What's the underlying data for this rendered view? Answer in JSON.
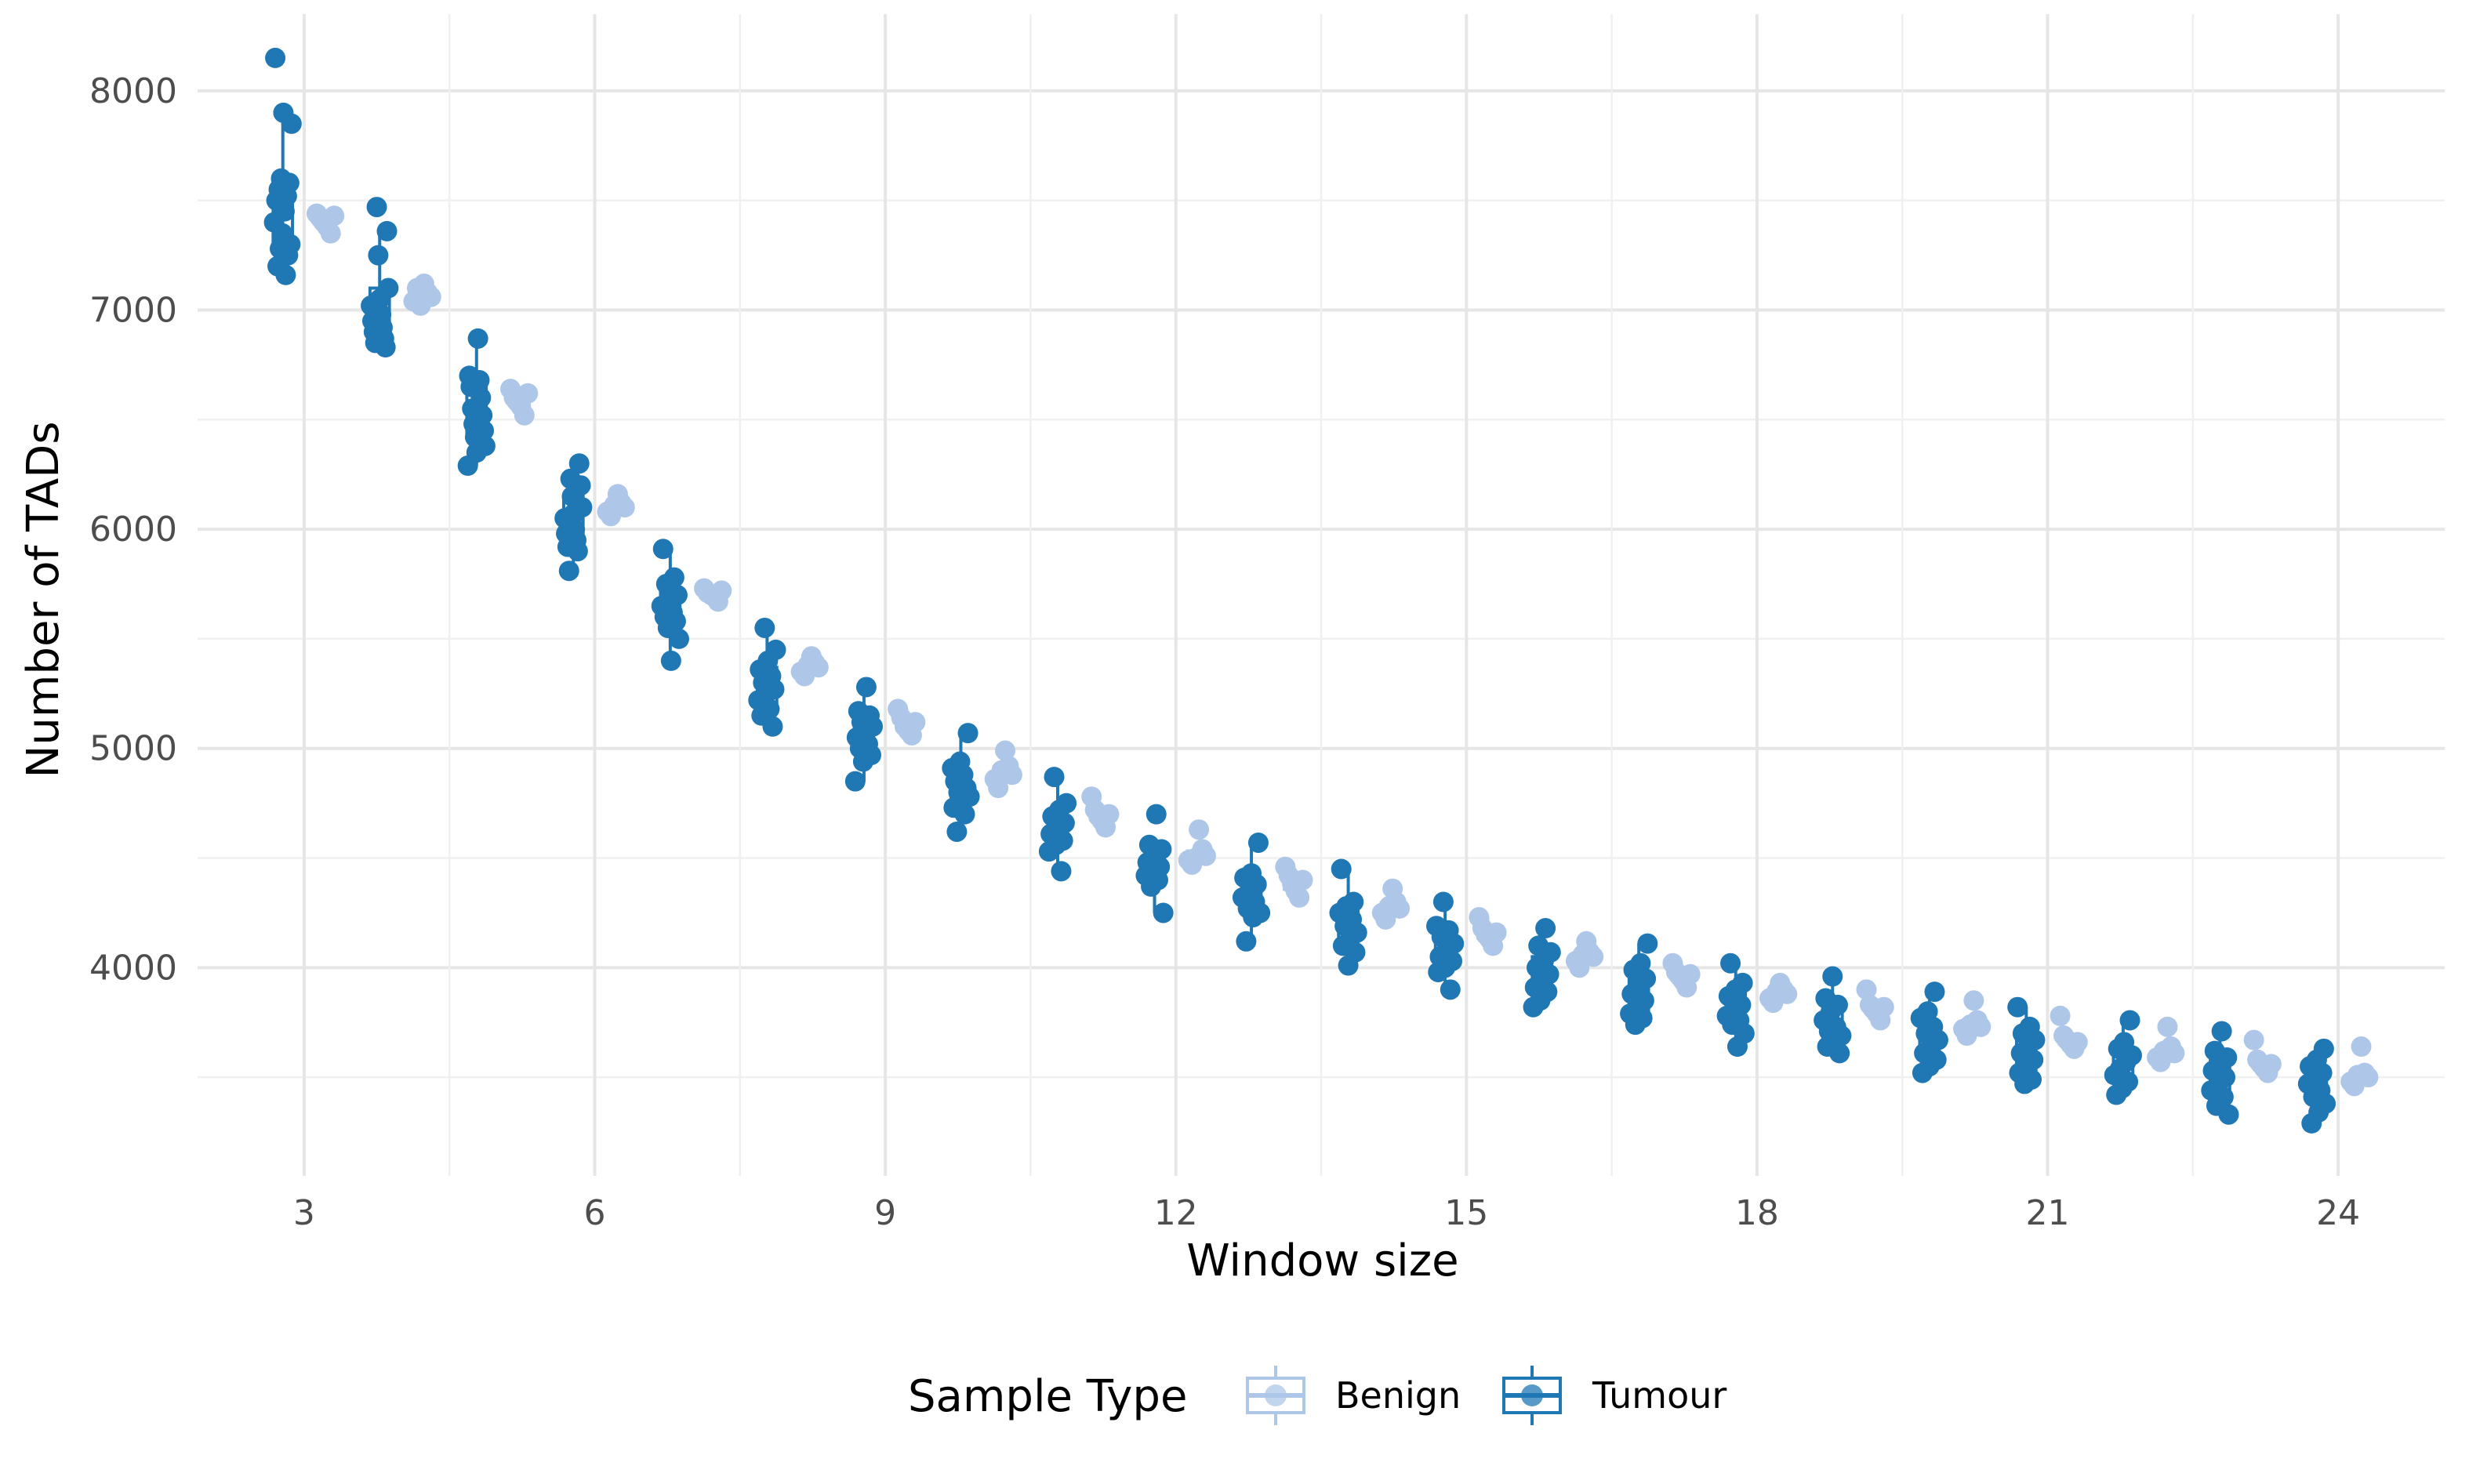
{
  "chart_data": {
    "type": "boxplot",
    "xlabel": "Window size",
    "ylabel": "Number of TADs",
    "x_ticks": [
      3,
      6,
      9,
      12,
      15,
      18,
      21,
      24
    ],
    "y_ticks": [
      4000,
      5000,
      6000,
      7000,
      8000
    ],
    "xlim": [
      1.9,
      25.1
    ],
    "ylim": [
      3050,
      8350
    ],
    "grid": true,
    "legend": {
      "title": "Sample Type",
      "position": "bottom",
      "entries": [
        "Benign",
        "Tumour"
      ]
    },
    "colors": {
      "Benign": "#aec7e8",
      "Tumour": "#1f77b4"
    },
    "series": [
      {
        "name": "Benign",
        "x": [
          3,
          4,
          5,
          6,
          7,
          8,
          9,
          10,
          11,
          12,
          13,
          14,
          15,
          16,
          17,
          18,
          19,
          20,
          21,
          22,
          23,
          24
        ],
        "points": [
          [
            7440,
            7420,
            7400,
            7380,
            7350,
            7430
          ],
          [
            7120,
            7080,
            7060,
            7040,
            7100,
            7020
          ],
          [
            6640,
            6600,
            6580,
            6560,
            6520,
            6620
          ],
          [
            6160,
            6120,
            6100,
            6080,
            6060,
            6110
          ],
          [
            5730,
            5710,
            5700,
            5690,
            5670,
            5720
          ],
          [
            5420,
            5390,
            5370,
            5350,
            5330,
            5380
          ],
          [
            5180,
            5140,
            5100,
            5080,
            5060,
            5120
          ],
          [
            4990,
            4920,
            4880,
            4860,
            4820,
            4900
          ],
          [
            4780,
            4720,
            4690,
            4670,
            4640,
            4700
          ],
          [
            4630,
            4540,
            4510,
            4490,
            4470,
            4500
          ],
          [
            4460,
            4420,
            4380,
            4350,
            4320,
            4400
          ],
          [
            4360,
            4300,
            4270,
            4250,
            4220,
            4280
          ],
          [
            4230,
            4180,
            4150,
            4130,
            4100,
            4160
          ],
          [
            4120,
            4070,
            4050,
            4030,
            4000,
            4060
          ],
          [
            4020,
            3980,
            3960,
            3940,
            3910,
            3970
          ],
          [
            3930,
            3900,
            3880,
            3860,
            3840,
            3890
          ],
          [
            3900,
            3830,
            3810,
            3790,
            3760,
            3820
          ],
          [
            3850,
            3760,
            3730,
            3720,
            3690,
            3740
          ],
          [
            3780,
            3690,
            3670,
            3650,
            3630,
            3660
          ],
          [
            3730,
            3640,
            3610,
            3590,
            3570,
            3620
          ],
          [
            3670,
            3580,
            3560,
            3540,
            3520,
            3560
          ],
          [
            3640,
            3520,
            3500,
            3480,
            3460,
            3510
          ]
        ]
      },
      {
        "name": "Tumour",
        "x": [
          3,
          4,
          5,
          6,
          7,
          8,
          9,
          10,
          11,
          12,
          13,
          14,
          15,
          16,
          17,
          18,
          19,
          20,
          21,
          22,
          23,
          24
        ],
        "points": [
          [
            8150,
            7900,
            7850,
            7600,
            7580,
            7550,
            7520,
            7500,
            7450,
            7400,
            7350,
            7300,
            7280,
            7250,
            7200,
            7160
          ],
          [
            7470,
            7360,
            7250,
            7100,
            7050,
            7020,
            6980,
            6950,
            6920,
            6900,
            6870,
            6850,
            6830
          ],
          [
            6870,
            6700,
            6680,
            6650,
            6600,
            6550,
            6520,
            6480,
            6450,
            6420,
            6380,
            6350,
            6290
          ],
          [
            6300,
            6230,
            6200,
            6150,
            6100,
            6070,
            6050,
            6000,
            5980,
            5950,
            5920,
            5900,
            5810
          ],
          [
            5910,
            5780,
            5750,
            5700,
            5680,
            5650,
            5620,
            5600,
            5580,
            5550,
            5500,
            5400
          ],
          [
            5550,
            5450,
            5400,
            5360,
            5330,
            5300,
            5270,
            5250,
            5220,
            5180,
            5150,
            5100
          ],
          [
            5280,
            5170,
            5150,
            5120,
            5100,
            5070,
            5050,
            5020,
            5000,
            4970,
            4940,
            4850
          ],
          [
            5070,
            4940,
            4910,
            4880,
            4850,
            4820,
            4800,
            4780,
            4760,
            4730,
            4700,
            4620
          ],
          [
            4870,
            4750,
            4720,
            4690,
            4660,
            4640,
            4610,
            4580,
            4560,
            4530,
            4440
          ],
          [
            4700,
            4560,
            4540,
            4510,
            4480,
            4460,
            4440,
            4420,
            4400,
            4370,
            4250
          ],
          [
            4570,
            4430,
            4410,
            4380,
            4350,
            4320,
            4300,
            4270,
            4250,
            4230,
            4120
          ],
          [
            4450,
            4300,
            4280,
            4250,
            4220,
            4190,
            4160,
            4130,
            4100,
            4070,
            4010
          ],
          [
            4300,
            4190,
            4170,
            4140,
            4110,
            4080,
            4050,
            4030,
            4000,
            3980,
            3900
          ],
          [
            4180,
            4100,
            4070,
            4030,
            4000,
            3970,
            3940,
            3910,
            3890,
            3850,
            3820
          ],
          [
            4110,
            4020,
            3990,
            3950,
            3920,
            3880,
            3850,
            3820,
            3790,
            3770,
            3740
          ],
          [
            4020,
            3930,
            3900,
            3870,
            3830,
            3800,
            3780,
            3760,
            3740,
            3700,
            3640
          ],
          [
            3960,
            3860,
            3830,
            3800,
            3760,
            3730,
            3710,
            3690,
            3660,
            3640,
            3610
          ],
          [
            3890,
            3800,
            3770,
            3730,
            3700,
            3670,
            3640,
            3610,
            3580,
            3550,
            3520
          ],
          [
            3820,
            3730,
            3700,
            3670,
            3640,
            3610,
            3580,
            3550,
            3520,
            3490,
            3470
          ],
          [
            3760,
            3660,
            3630,
            3600,
            3570,
            3540,
            3510,
            3480,
            3450,
            3420
          ],
          [
            3710,
            3620,
            3590,
            3560,
            3530,
            3500,
            3470,
            3440,
            3410,
            3370,
            3330
          ],
          [
            3630,
            3580,
            3550,
            3520,
            3500,
            3470,
            3440,
            3410,
            3380,
            3340,
            3290
          ]
        ]
      }
    ]
  }
}
